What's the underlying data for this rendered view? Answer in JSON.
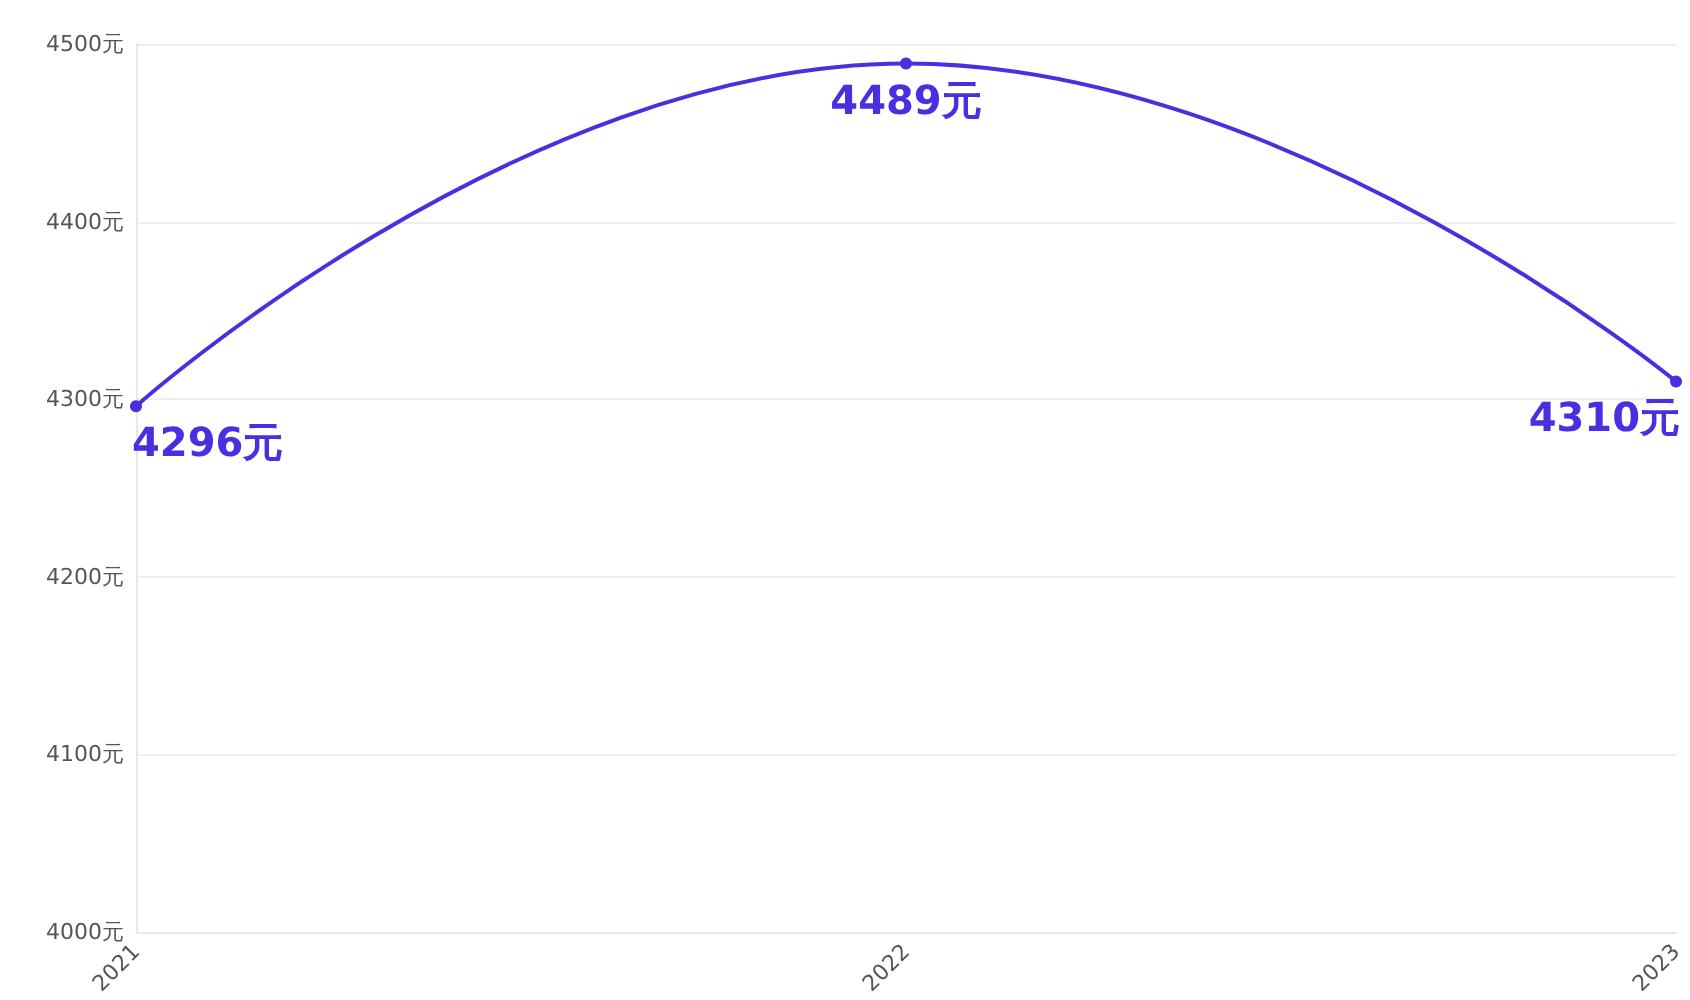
{
  "chart_data": {
    "type": "line",
    "categories": [
      "2021",
      "2022",
      "2023"
    ],
    "series": [
      {
        "color": "#4a2fe0",
        "values": [
          4296,
          4489,
          4310
        ],
        "value_labels": [
          "4296元",
          "4489元",
          "4310元"
        ]
      }
    ],
    "ylim": [
      4000,
      4500
    ],
    "yticks": [
      {
        "value": 4000,
        "label": "4000元"
      },
      {
        "value": 4100,
        "label": "4100元"
      },
      {
        "value": 4200,
        "label": "4200元"
      },
      {
        "value": 4300,
        "label": "4300元"
      },
      {
        "value": 4400,
        "label": "4400元"
      },
      {
        "value": 4500,
        "label": "4500元"
      }
    ],
    "grid": "y",
    "marker": "circle",
    "line_style": "solid"
  }
}
